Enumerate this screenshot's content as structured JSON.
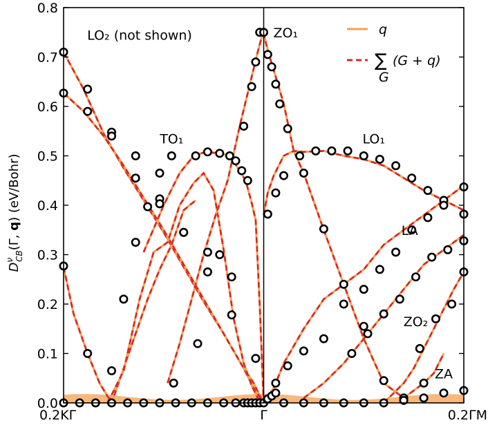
{
  "chart_data": {
    "type": "line",
    "ylabel": "D_CB^ν(Γ, q) (eV/Bohr)",
    "ylabel_parts": {
      "main": "D",
      "sub": "CB",
      "sup": "ν",
      "args": "(Γ, ",
      "bold": "q",
      "tail": ") (eV/Bohr)"
    },
    "xlim": [
      -1,
      1
    ],
    "ylim": [
      0,
      0.8
    ],
    "yticks": [
      0.0,
      0.1,
      0.2,
      0.3,
      0.4,
      0.5,
      0.6,
      0.7,
      0.8
    ],
    "ytick_labels": [
      "0.0",
      "0.1",
      "0.2",
      "0.3",
      "0.4",
      "0.5",
      "0.6",
      "0.7",
      "0.8"
    ],
    "xticks": [
      -1,
      0,
      1
    ],
    "xtick_labels": [
      "0.2KΓ",
      "Γ",
      "0.2ΓM"
    ],
    "legend": {
      "position": "top-right",
      "entries": [
        {
          "label": "q",
          "style": "solid",
          "color": "#f5a050"
        },
        {
          "label": "∑(G + q)",
          "label_sum": "∑",
          "label_sub": "G",
          "label_rest": "(G + q)",
          "style": "dashed",
          "color": "#d62728"
        }
      ]
    },
    "annotations": [
      {
        "text": "LO₂ (not shown)",
        "x": -0.62,
        "y": 0.735
      },
      {
        "text": "ZO₁",
        "x": 0.11,
        "y": 0.74
      },
      {
        "text": "TO₁",
        "x": -0.46,
        "y": 0.525
      },
      {
        "text": "LO₁",
        "x": 0.55,
        "y": 0.525
      },
      {
        "text": "LA",
        "x": 0.73,
        "y": 0.34
      },
      {
        "text": "ZO₂",
        "x": 0.76,
        "y": 0.155
      },
      {
        "text": "ZA",
        "x": 0.9,
        "y": 0.05
      }
    ],
    "series": [
      {
        "curve_x": [
          -1,
          -0.9,
          -0.8,
          -0.7,
          -0.6,
          -0.5,
          -0.4,
          -0.3,
          -0.2,
          -0.1,
          -0.05,
          -0.02,
          0
        ],
        "curve_y": [
          0.71,
          0.635,
          0.545,
          0.475,
          0.41,
          0.345,
          0.275,
          0.205,
          0.14,
          0.07,
          0.04,
          0.015,
          0
        ],
        "points_x": [
          -1,
          -0.88,
          -0.76,
          -0.64,
          -0.52,
          -0.4,
          -0.28,
          -0.16
        ],
        "points_y": [
          0.71,
          0.635,
          0.548,
          0.455,
          0.413,
          0.345,
          0.265,
          0.178
        ]
      },
      {
        "curve_x": [
          -1,
          -0.9,
          -0.8,
          -0.7,
          -0.6,
          -0.5,
          -0.4,
          -0.3,
          -0.2,
          -0.1,
          -0.05,
          0
        ],
        "curve_y": [
          0.627,
          0.59,
          0.54,
          0.48,
          0.415,
          0.35,
          0.28,
          0.21,
          0.14,
          0.07,
          0.03,
          0
        ],
        "points_x": [
          -1,
          -0.88,
          -0.76,
          -0.64,
          -0.52,
          -0.4,
          -0.28,
          -0.16,
          -0.04
        ],
        "points_y": [
          0.627,
          0.59,
          0.54,
          0.5,
          0.403,
          0.345,
          0.305,
          0.255,
          0.09
        ]
      },
      {
        "curve_x": [
          -1,
          -0.95,
          -0.88,
          -0.82,
          -0.76,
          -0.7,
          -0.64,
          -0.58,
          -0.52,
          -0.46,
          -0.4,
          -0.34
        ],
        "curve_y": [
          0.275,
          0.18,
          0.1,
          0.04,
          0,
          0.07,
          0.14,
          0.21,
          0.27,
          0.32,
          0.39,
          0.41
        ],
        "points_x": [
          -1,
          -0.88
        ],
        "points_y": [
          0.277,
          0.1
        ]
      },
      {
        "curve_x": [
          -0.78,
          -0.7,
          -0.62,
          -0.55,
          -0.48,
          -0.42,
          -0.35,
          -0.3,
          -0.25,
          -0.2,
          -0.15,
          -0.1,
          -0.06,
          -0.03,
          0
        ],
        "curve_y": [
          0,
          0.065,
          0.21,
          0.305,
          0.325,
          0.4,
          0.445,
          0.465,
          0.43,
          0.31,
          0.17,
          0.08,
          0.035,
          0.01,
          0
        ],
        "points_x": [
          -0.76,
          -0.7,
          -0.64,
          -0.58,
          -0.52,
          -0.46
        ],
        "points_y": [
          0.065,
          0.21,
          0.325,
          0.397,
          0.465,
          0.5
        ]
      },
      {
        "curve_x": [
          -0.6,
          -0.5,
          -0.42,
          -0.35,
          -0.29,
          -0.22,
          -0.17,
          -0.12,
          -0.09,
          -0.06,
          -0.04,
          -0.02,
          0
        ],
        "curve_y": [
          0.305,
          0.4,
          0.465,
          0.5,
          0.508,
          0.505,
          0.5,
          0.47,
          0.45,
          0.405,
          0.37,
          0.2,
          0
        ],
        "points_x": [
          -0.34,
          -0.28,
          -0.22,
          -0.17,
          -0.14,
          -0.11,
          -0.08
        ],
        "points_y": [
          0.5,
          0.508,
          0.505,
          0.5,
          0.49,
          0.47,
          0.45
        ]
      },
      {
        "curve_x": [
          -0.48,
          -0.42,
          -0.36,
          -0.3,
          -0.24,
          -0.18,
          -0.12,
          -0.06,
          -0.03,
          -0.01,
          0
        ],
        "curve_y": [
          0.04,
          0.12,
          0.21,
          0.3,
          0.38,
          0.45,
          0.56,
          0.66,
          0.71,
          0.74,
          0.75
        ],
        "points_x": [
          -0.45,
          -0.33,
          -0.22,
          -0.1,
          -0.06,
          -0.04,
          -0.02
        ],
        "points_y": [
          0.04,
          0.12,
          0.3,
          0.56,
          0.64,
          0.69,
          0.75
        ]
      },
      {
        "curve_x": [
          0,
          0.01,
          0.03,
          0.06,
          0.1,
          0.15,
          0.2,
          0.3,
          0.4,
          0.5,
          0.6,
          0.7,
          0.8,
          0.85,
          0.9
        ],
        "curve_y": [
          0.75,
          0.73,
          0.7,
          0.66,
          0.605,
          0.51,
          0.465,
          0.35,
          0.24,
          0.13,
          0.04,
          0.01,
          0.04,
          0.06,
          0.1
        ],
        "points_x": [
          0.0,
          0.02,
          0.04,
          0.06,
          0.08,
          0.12,
          0.2,
          0.3,
          0.4,
          0.5,
          0.6,
          0.7,
          0.8
        ],
        "points_y": [
          0.75,
          0.705,
          0.68,
          0.645,
          0.605,
          0.555,
          0.465,
          0.352,
          0.24,
          0.155,
          0.045,
          0.01,
          0.04
        ]
      },
      {
        "curve_x": [
          0,
          0.02,
          0.05,
          0.1,
          0.15,
          0.2,
          0.3,
          0.4,
          0.5,
          0.6,
          0.7,
          0.8,
          0.9,
          1
        ],
        "curve_y": [
          0.38,
          0.425,
          0.46,
          0.5,
          0.51,
          0.508,
          0.51,
          0.5,
          0.493,
          0.48,
          0.455,
          0.43,
          0.41,
          0.39
        ],
        "points_x": [
          0.02,
          0.06,
          0.1,
          0.18,
          0.26,
          0.34,
          0.42,
          0.5,
          0.58,
          0.66,
          0.74,
          0.82,
          0.9,
          1
        ],
        "points_y": [
          0.382,
          0.425,
          0.46,
          0.5,
          0.51,
          0.51,
          0.51,
          0.5,
          0.493,
          0.48,
          0.455,
          0.43,
          0.41,
          0.382
        ]
      },
      {
        "curve_x": [
          0,
          0.05,
          0.1,
          0.2,
          0.3,
          0.4,
          0.5,
          0.6,
          0.7,
          0.8,
          0.9,
          1
        ],
        "curve_y": [
          0.0,
          0.03,
          0.08,
          0.15,
          0.21,
          0.24,
          0.27,
          0.32,
          0.35,
          0.38,
          0.41,
          0.44
        ],
        "points_x": [
          0.06,
          0.12,
          0.2,
          0.3,
          0.4,
          0.5,
          0.58,
          0.66,
          0.74,
          0.82,
          0.9,
          1
        ],
        "points_y": [
          0.04,
          0.075,
          0.105,
          0.13,
          0.2,
          0.23,
          0.27,
          0.305,
          0.35,
          0.375,
          0.4,
          0.437
        ]
      },
      {
        "curve_x": [
          0.2,
          0.3,
          0.4,
          0.5,
          0.6,
          0.7,
          0.8,
          0.9,
          1
        ],
        "curve_y": [
          0.01,
          0.04,
          0.08,
          0.13,
          0.18,
          0.23,
          0.28,
          0.31,
          0.34
        ],
        "points_x": [
          0.44,
          0.52,
          0.6,
          0.68,
          0.76,
          0.84,
          0.92,
          1
        ],
        "points_y": [
          0.1,
          0.14,
          0.18,
          0.21,
          0.255,
          0.295,
          0.31,
          0.328
        ]
      },
      {
        "curve_x": [
          0.6,
          0.65,
          0.7,
          0.75,
          0.8,
          0.85,
          0.9,
          0.95,
          1
        ],
        "curve_y": [
          0.0,
          0.02,
          0.04,
          0.07,
          0.11,
          0.15,
          0.19,
          0.23,
          0.265
        ],
        "points_x": [
          0.78,
          0.86,
          0.94,
          1
        ],
        "points_y": [
          0.11,
          0.17,
          0.2,
          0.265
        ]
      }
    ],
    "bottom_points_x": [
      -1,
      -0.92,
      -0.84,
      -0.76,
      -0.68,
      -0.6,
      -0.52,
      -0.44,
      -0.36,
      -0.28,
      -0.2,
      -0.14,
      -0.1,
      -0.08,
      -0.06,
      -0.04,
      -0.02,
      0,
      0.02,
      0.04,
      0.06,
      0.1,
      0.2,
      0.3,
      0.4,
      0.5,
      0.6,
      0.7,
      0.8,
      0.9,
      1
    ],
    "bottom_points_y": [
      0.0,
      0.0,
      0.0,
      0.0,
      0.0,
      0.0,
      0.0,
      0.0,
      0.0,
      0.0,
      0.0,
      0.0,
      0.0,
      0.0,
      0.0,
      0.0,
      0.0,
      0.0,
      0.008,
      0.014,
      0.02,
      0.0,
      0.0,
      0.0,
      0.0,
      0.0,
      0.0,
      0.005,
      0.01,
      0.02,
      0.025
    ]
  }
}
